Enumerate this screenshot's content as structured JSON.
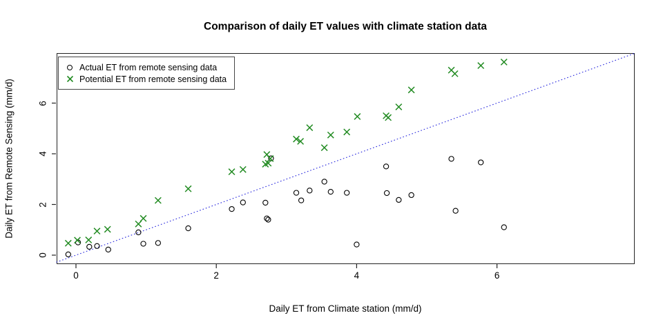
{
  "chart_data": {
    "type": "scatter",
    "title": "Comparison of daily ET values with climate station data",
    "xlabel": "Daily ET from Climate station (mm/d)",
    "ylabel": "Daily ET from Remote Sensing (mm/d)",
    "xlim": [
      -0.28,
      7.96
    ],
    "ylim": [
      -0.33,
      7.98
    ],
    "x_ticks": [
      0,
      2,
      4,
      6
    ],
    "y_ticks": [
      0,
      2,
      4,
      6
    ],
    "grid": false,
    "legend_position": "top-left",
    "reference_line": {
      "slope": 1,
      "intercept": 0,
      "style": "dotted",
      "color": "#2222dd"
    },
    "series": [
      {
        "name": "Actual ET from remote sensing data",
        "marker": "circle-open",
        "color": "#000000",
        "points": [
          [
            -0.11,
            0.03
          ],
          [
            0.03,
            0.5
          ],
          [
            0.19,
            0.33
          ],
          [
            0.3,
            0.36
          ],
          [
            0.46,
            0.22
          ],
          [
            0.89,
            0.9
          ],
          [
            0.96,
            0.45
          ],
          [
            1.17,
            0.48
          ],
          [
            1.6,
            1.06
          ],
          [
            2.22,
            1.82
          ],
          [
            2.38,
            2.08
          ],
          [
            2.7,
            2.07
          ],
          [
            2.72,
            1.45
          ],
          [
            2.74,
            1.4
          ],
          [
            2.78,
            3.82
          ],
          [
            3.14,
            2.46
          ],
          [
            3.21,
            2.16
          ],
          [
            3.33,
            2.55
          ],
          [
            3.54,
            2.9
          ],
          [
            3.63,
            2.5
          ],
          [
            3.86,
            2.46
          ],
          [
            4.0,
            0.42
          ],
          [
            4.42,
            3.5
          ],
          [
            4.43,
            2.45
          ],
          [
            4.6,
            2.18
          ],
          [
            4.78,
            2.37
          ],
          [
            5.35,
            3.8
          ],
          [
            5.41,
            1.75
          ],
          [
            5.77,
            3.66
          ],
          [
            6.1,
            1.1
          ]
        ]
      },
      {
        "name": "Potential ET from remote sensing data",
        "marker": "x",
        "color": "#228B22",
        "points": [
          [
            -0.11,
            0.47
          ],
          [
            0.02,
            0.59
          ],
          [
            0.18,
            0.6
          ],
          [
            0.3,
            0.95
          ],
          [
            0.45,
            1.02
          ],
          [
            0.89,
            1.23
          ],
          [
            0.96,
            1.45
          ],
          [
            1.17,
            2.16
          ],
          [
            1.6,
            2.62
          ],
          [
            2.22,
            3.29
          ],
          [
            2.38,
            3.38
          ],
          [
            2.7,
            3.59
          ],
          [
            2.74,
            3.63
          ],
          [
            2.72,
            3.97
          ],
          [
            2.77,
            3.81
          ],
          [
            3.14,
            4.58
          ],
          [
            3.2,
            4.49
          ],
          [
            3.33,
            5.03
          ],
          [
            3.54,
            4.24
          ],
          [
            3.63,
            4.74
          ],
          [
            3.86,
            4.86
          ],
          [
            4.01,
            5.47
          ],
          [
            4.42,
            5.5
          ],
          [
            4.45,
            5.43
          ],
          [
            4.6,
            5.85
          ],
          [
            4.78,
            6.52
          ],
          [
            5.35,
            7.3
          ],
          [
            5.4,
            7.16
          ],
          [
            5.77,
            7.48
          ],
          [
            6.1,
            7.62
          ]
        ]
      }
    ]
  }
}
